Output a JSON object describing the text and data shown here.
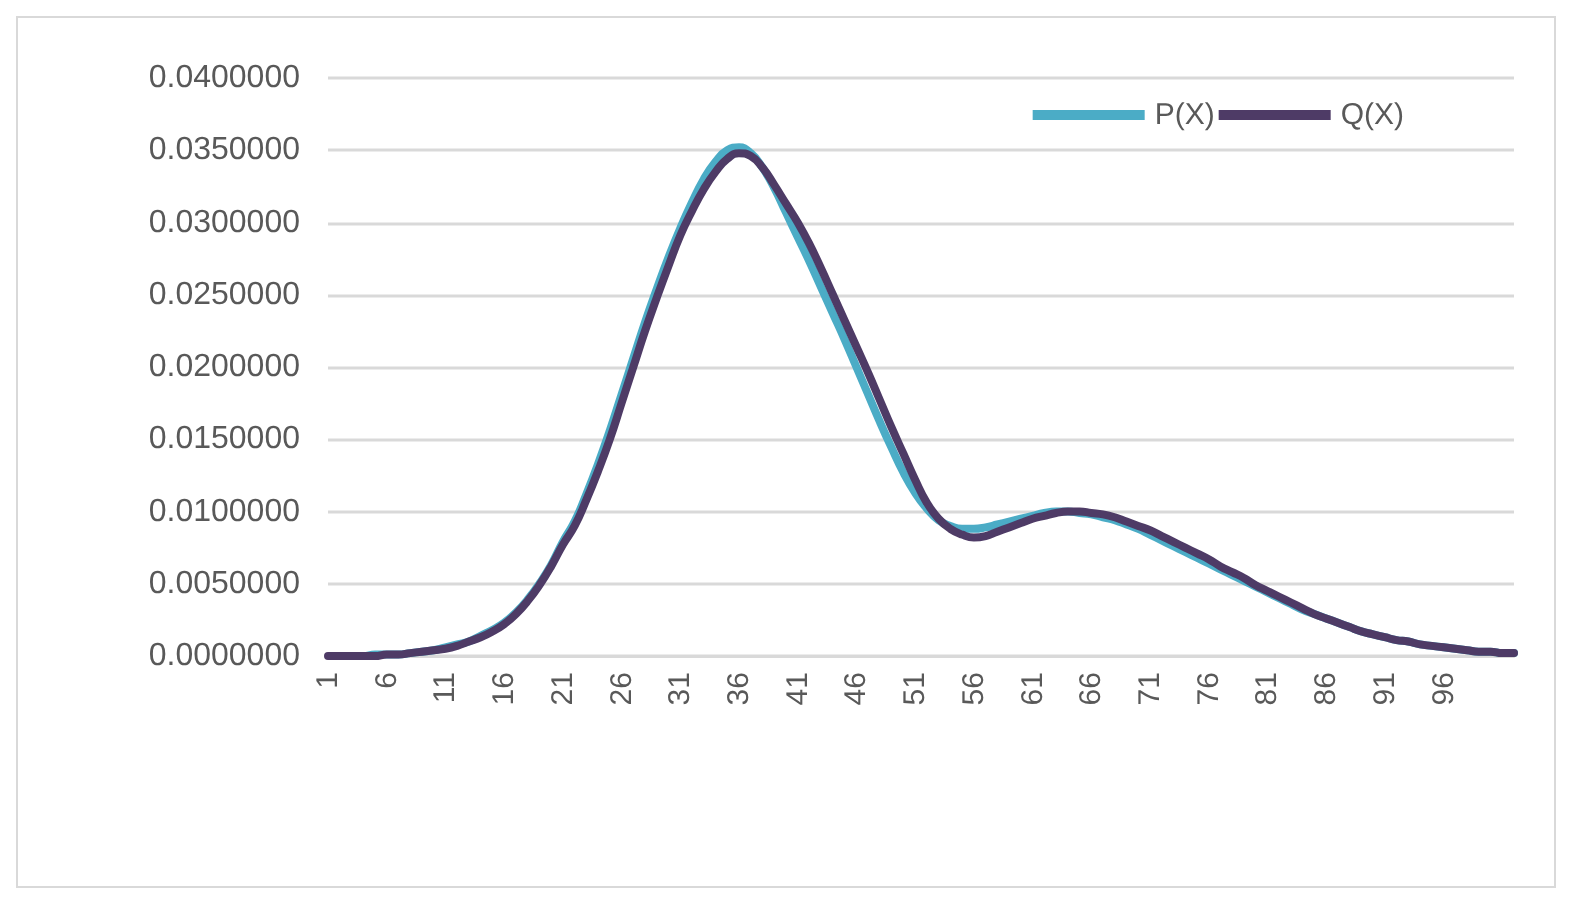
{
  "chart_data": {
    "type": "line",
    "categories": [
      "1",
      null,
      null,
      null,
      null,
      "6",
      null,
      null,
      null,
      null,
      "11",
      null,
      null,
      null,
      null,
      "16",
      null,
      null,
      null,
      null,
      "21",
      null,
      null,
      null,
      null,
      "26",
      null,
      null,
      null,
      null,
      "31",
      null,
      null,
      null,
      null,
      "36",
      null,
      null,
      null,
      null,
      "41",
      null,
      null,
      null,
      null,
      "46",
      null,
      null,
      null,
      null,
      "51",
      null,
      null,
      null,
      null,
      "56",
      null,
      null,
      null,
      null,
      "61",
      null,
      null,
      null,
      null,
      "66",
      null,
      null,
      null,
      null,
      "71",
      null,
      null,
      null,
      null,
      "76",
      null,
      null,
      null,
      null,
      "81",
      null,
      null,
      null,
      null,
      "86",
      null,
      null,
      null,
      null,
      "91",
      null,
      null,
      null,
      null,
      "96",
      null,
      null,
      null,
      null,
      null,
      null
    ],
    "series": [
      {
        "name": "P(X)",
        "color": "#4bacc6",
        "values": [
          null,
          null,
          0,
          0,
          0.0001,
          0.0001,
          0.0001,
          0.0002,
          0.0003,
          0.0004,
          0.0006,
          0.0008,
          0.001,
          0.0014,
          0.0018,
          0.0023,
          0.003,
          0.0039,
          0.005,
          0.0063,
          0.0079,
          0.0093,
          0.0112,
          0.0133,
          0.0156,
          0.0181,
          0.0206,
          0.0231,
          0.0254,
          0.0276,
          0.0296,
          0.0314,
          0.033,
          0.0342,
          0.035,
          0.0352,
          0.0348,
          0.0338,
          0.0324,
          0.0307,
          0.029,
          0.0273,
          0.0255,
          0.0237,
          0.0219,
          0.02,
          0.0181,
          0.0162,
          0.0144,
          0.0127,
          0.0113,
          0.0102,
          0.0094,
          0.009,
          0.0088,
          0.0088,
          0.0089,
          0.0091,
          0.0093,
          0.0095,
          0.0097,
          0.0099,
          0.01,
          0.01,
          0.0099,
          0.0098,
          0.0096,
          0.0094,
          0.0091,
          0.0088,
          0.0084,
          0.008,
          0.0076,
          0.0072,
          0.0068,
          0.0064,
          0.006,
          0.0056,
          0.0052,
          0.0048,
          0.0044,
          0.004,
          0.0036,
          0.0032,
          0.0029,
          0.0026,
          0.0023,
          0.002,
          0.0017,
          0.0015,
          0.0013,
          0.0011,
          0.001,
          0.0008,
          0.0007,
          0.0006,
          0.0005,
          0.0004,
          0.0003,
          0.0003,
          0.0002,
          0.0002
        ]
      },
      {
        "name": "Q(X)",
        "color": "#4e3b66",
        "values": [
          0,
          0,
          0,
          0,
          0,
          0.0001,
          0.0001,
          0.0002,
          0.0003,
          0.0004,
          0.0005,
          0.0007,
          0.001,
          0.0013,
          0.0017,
          0.0022,
          0.0029,
          0.0038,
          0.0049,
          0.0062,
          0.0077,
          0.009,
          0.0108,
          0.0128,
          0.015,
          0.0175,
          0.02,
          0.0225,
          0.0248,
          0.027,
          0.0291,
          0.0308,
          0.0323,
          0.0335,
          0.0344,
          0.0348,
          0.0346,
          0.0338,
          0.0326,
          0.0313,
          0.03,
          0.0285,
          0.0268,
          0.025,
          0.0232,
          0.0214,
          0.0196,
          0.0177,
          0.0158,
          0.014,
          0.0122,
          0.0106,
          0.0095,
          0.0088,
          0.0084,
          0.0082,
          0.0083,
          0.0086,
          0.0089,
          0.0092,
          0.0095,
          0.0097,
          0.0099,
          0.01,
          0.01,
          0.0099,
          0.0098,
          0.0096,
          0.0093,
          0.009,
          0.0087,
          0.0083,
          0.0079,
          0.0075,
          0.0071,
          0.0067,
          0.0062,
          0.0058,
          0.0054,
          0.0049,
          0.0045,
          0.0041,
          0.0037,
          0.0033,
          0.0029,
          0.0026,
          0.0023,
          0.002,
          0.0017,
          0.0015,
          0.0013,
          0.0011,
          0.001,
          0.0008,
          0.0007,
          0.0006,
          0.0005,
          0.0004,
          0.0003,
          0.0003,
          0.0002,
          0.0002
        ]
      }
    ],
    "ylim": [
      0,
      0.04
    ],
    "yticks": [
      {
        "value": 0,
        "label": "0.0000000"
      },
      {
        "value": 0.005,
        "label": "0.0050000"
      },
      {
        "value": 0.01,
        "label": "0.0100000"
      },
      {
        "value": 0.015,
        "label": "0.0150000"
      },
      {
        "value": 0.02,
        "label": "0.0200000"
      },
      {
        "value": 0.025,
        "label": "0.0250000"
      },
      {
        "value": 0.03,
        "label": "0.0300000"
      },
      {
        "value": 0.035,
        "label": "0.0350000"
      },
      {
        "value": 0.04,
        "label": "0.0400000"
      }
    ],
    "grid": "y",
    "legend": "top right",
    "marker": "none",
    "line_style": "solid"
  }
}
